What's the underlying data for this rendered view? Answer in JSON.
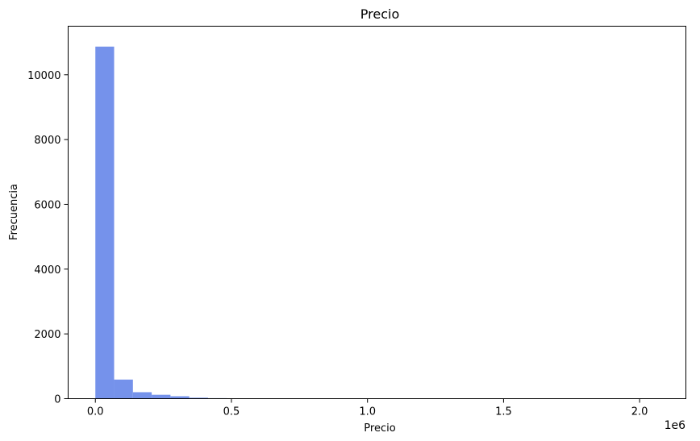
{
  "chart_data": {
    "type": "bar",
    "subtype": "histogram",
    "title": "Precio",
    "xlabel": "Precio",
    "ylabel": "Frecuencia",
    "x_scale_label": "1e6",
    "bar_color": "#7592eb",
    "grid": false,
    "bins": {
      "start": 0,
      "width": 69000,
      "counts": [
        10870,
        590,
        200,
        120,
        75,
        30,
        15,
        10,
        5,
        0,
        0,
        0,
        0,
        0,
        0,
        0,
        0,
        0,
        0,
        0,
        0,
        0,
        0,
        0,
        0,
        0,
        0,
        0,
        0,
        1
      ]
    },
    "xlim": [
      -100000,
      2170000
    ],
    "ylim": [
      0,
      11500
    ],
    "x_ticks": [
      {
        "value": 0,
        "label": "0.0"
      },
      {
        "value": 500000,
        "label": "0.5"
      },
      {
        "value": 1000000,
        "label": "1.0"
      },
      {
        "value": 1500000,
        "label": "1.5"
      },
      {
        "value": 2000000,
        "label": "2.0"
      }
    ],
    "y_ticks": [
      {
        "value": 0,
        "label": "0"
      },
      {
        "value": 2000,
        "label": "2000"
      },
      {
        "value": 4000,
        "label": "4000"
      },
      {
        "value": 6000,
        "label": "6000"
      },
      {
        "value": 8000,
        "label": "8000"
      },
      {
        "value": 10000,
        "label": "10000"
      }
    ]
  }
}
